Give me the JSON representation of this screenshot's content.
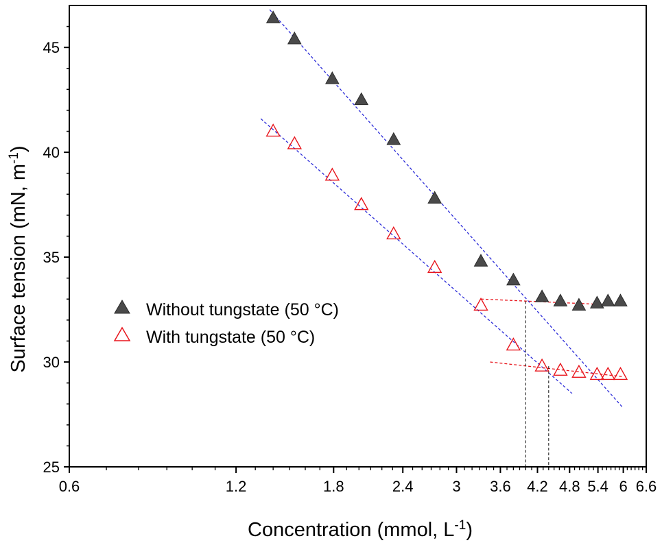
{
  "chart_data": {
    "type": "scatter",
    "x_scale": "log",
    "xlim": [
      0.6,
      6.6
    ],
    "ylim": [
      25,
      47
    ],
    "xlabel": "Concentration (mmol, L",
    "xlabel_sup": "-1",
    "xlabel_close": ")",
    "ylabel": "Surface tension (mN, m",
    "ylabel_sup": "-1",
    "ylabel_close": ")",
    "x_ticks": [
      0.6,
      1.2,
      1.8,
      2.4,
      3,
      3.6,
      4.2,
      4.8,
      5.4,
      6,
      6.6
    ],
    "x_tick_labels": [
      "0.6",
      "1.2",
      "1.8",
      "2.4",
      "3",
      "3.6",
      "4.2",
      "4.8",
      "5.4",
      "6",
      "6.6"
    ],
    "y_ticks": [
      25,
      30,
      35,
      40,
      45
    ],
    "y_tick_labels": [
      "25",
      "30",
      "35",
      "40",
      "45"
    ],
    "grid": false,
    "legend_position": "center-left",
    "series": [
      {
        "name": "Without tungstate (50 °C)",
        "marker": "filled-triangle",
        "color": "#4a4a4a",
        "x": [
          1.4,
          1.53,
          1.79,
          2.02,
          2.31,
          2.74,
          3.32,
          3.8,
          4.28,
          4.62,
          4.99,
          5.38,
          5.63,
          5.93
        ],
        "y": [
          46.4,
          45.4,
          43.5,
          42.5,
          40.6,
          37.8,
          34.8,
          33.9,
          33.1,
          32.9,
          32.7,
          32.8,
          32.9,
          32.9
        ]
      },
      {
        "name": "With tungstate (50 °C)",
        "marker": "open-triangle",
        "color": "#e8141b",
        "x": [
          1.4,
          1.53,
          1.79,
          2.02,
          2.31,
          2.74,
          3.32,
          3.8,
          4.28,
          4.62,
          4.99,
          5.38,
          5.63,
          5.93
        ],
        "y": [
          41.0,
          40.4,
          38.9,
          37.5,
          36.1,
          34.5,
          32.7,
          30.8,
          29.8,
          29.6,
          29.5,
          29.4,
          29.4,
          29.4
        ]
      }
    ],
    "fit_lines": [
      {
        "color": "#2b2bd8",
        "x": [
          1.38,
          6.0
        ],
        "y": [
          46.8,
          27.8
        ]
      },
      {
        "color": "#2b2bd8",
        "x": [
          1.33,
          4.85
        ],
        "y": [
          41.6,
          28.5
        ]
      },
      {
        "color": "#e8141b",
        "x": [
          3.32,
          6.0
        ],
        "y": [
          33.0,
          32.7
        ]
      },
      {
        "color": "#e8141b",
        "x": [
          3.45,
          6.0
        ],
        "y": [
          30.0,
          29.3
        ]
      }
    ],
    "intersection_markers": [
      {
        "x": 4.0,
        "y_top": 32.9
      },
      {
        "x": 4.4,
        "y_top": 29.8
      }
    ]
  }
}
